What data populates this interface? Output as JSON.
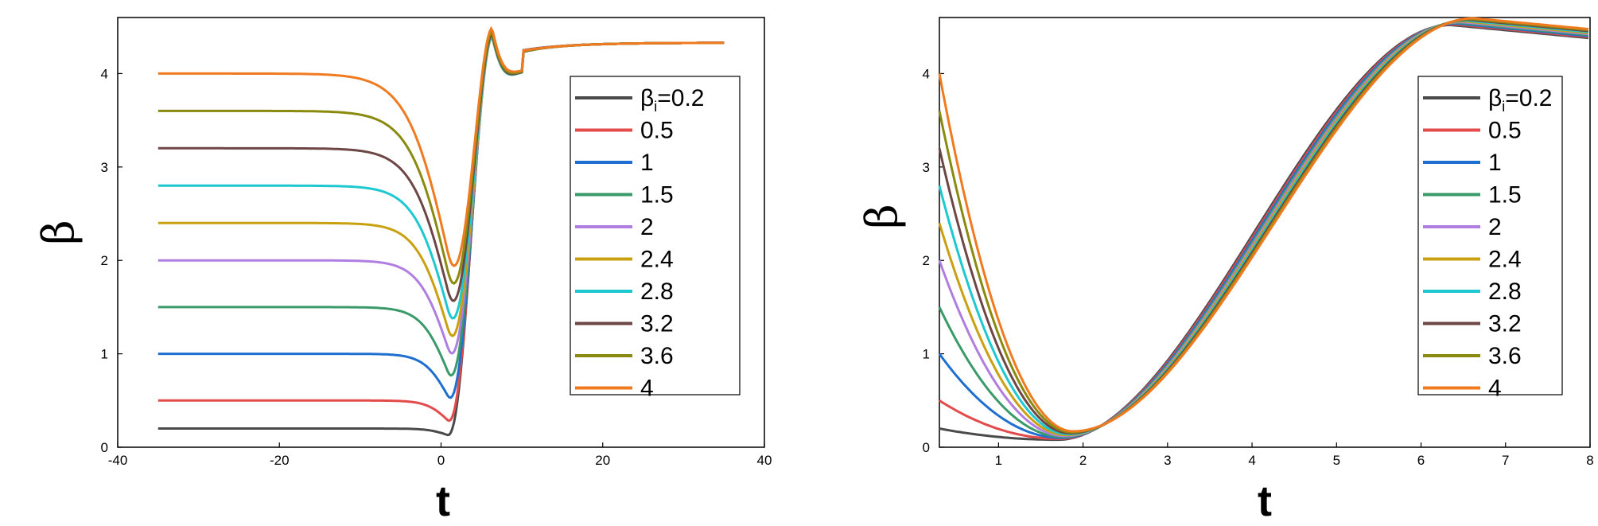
{
  "chart_data": [
    {
      "type": "line",
      "xlabel": "t",
      "ylabel": "β",
      "xlim": [
        -40,
        40
      ],
      "ylim": [
        0,
        4.6
      ],
      "xticks": [
        -40,
        -20,
        0,
        20,
        40
      ],
      "xtick_labels": [
        "-40",
        "-20",
        "0",
        "20",
        "40"
      ],
      "yticks": [
        0,
        1,
        2,
        3,
        4
      ],
      "ytick_labels": [
        "0",
        "1",
        "2",
        "3",
        "4"
      ],
      "legend_position": "right",
      "series": [
        {
          "name": "βi=0.2",
          "legend_label": "=0.2",
          "legend_symbol": "β",
          "legend_sub": "i",
          "init": 0.2,
          "color": "#4a4a4a"
        },
        {
          "name": "0.5",
          "legend_label": "0.5",
          "init": 0.5,
          "color": "#e34a4a"
        },
        {
          "name": "1",
          "legend_label": "1",
          "init": 1.0,
          "color": "#1f6fd0"
        },
        {
          "name": "1.5",
          "legend_label": "1.5",
          "init": 1.5,
          "color": "#3a9a6a"
        },
        {
          "name": "2",
          "legend_label": "2",
          "init": 2.0,
          "color": "#b07ee0"
        },
        {
          "name": "2.4",
          "legend_label": "2.4",
          "init": 2.4,
          "color": "#c9a010"
        },
        {
          "name": "2.8",
          "legend_label": "2.8",
          "init": 2.8,
          "color": "#1ec8d0"
        },
        {
          "name": "3.2",
          "legend_label": "3.2",
          "init": 3.2,
          "color": "#6e4646"
        },
        {
          "name": "3.6",
          "legend_label": "3.6",
          "init": 3.6,
          "color": "#8a8a10"
        },
        {
          "name": "4",
          "legend_label": "4",
          "init": 4.0,
          "color": "#f07a20"
        }
      ]
    },
    {
      "type": "line",
      "xlabel": "t",
      "ylabel": "β",
      "xlim": [
        0.3,
        8
      ],
      "ylim": [
        0,
        4.6
      ],
      "xticks": [
        1,
        2,
        3,
        4,
        5,
        6,
        7,
        8
      ],
      "xtick_labels": [
        "1",
        "2",
        "3",
        "4",
        "5",
        "6",
        "7",
        "8"
      ],
      "yticks": [
        0,
        1,
        2,
        3,
        4
      ],
      "ytick_labels": [
        "0",
        "1",
        "2",
        "3",
        "4"
      ],
      "legend_position": "right",
      "series": [
        {
          "name": "βi=0.2",
          "legend_label": "=0.2",
          "legend_symbol": "β",
          "legend_sub": "i",
          "init": 0.2,
          "color": "#4a4a4a"
        },
        {
          "name": "0.5",
          "legend_label": "0.5",
          "init": 0.5,
          "color": "#e34a4a"
        },
        {
          "name": "1",
          "legend_label": "1",
          "init": 1.0,
          "color": "#1f6fd0"
        },
        {
          "name": "1.5",
          "legend_label": "1.5",
          "init": 1.5,
          "color": "#3a9a6a"
        },
        {
          "name": "2",
          "legend_label": "2",
          "init": 2.0,
          "color": "#b07ee0"
        },
        {
          "name": "2.4",
          "legend_label": "2.4",
          "init": 2.4,
          "color": "#c9a010"
        },
        {
          "name": "2.8",
          "legend_label": "2.8",
          "init": 2.8,
          "color": "#1ec8d0"
        },
        {
          "name": "3.2",
          "legend_label": "3.2",
          "init": 3.2,
          "color": "#6e4646"
        },
        {
          "name": "3.6",
          "legend_label": "3.6",
          "init": 3.6,
          "color": "#8a8a10"
        },
        {
          "name": "4",
          "legend_label": "4",
          "init": 4.0,
          "color": "#f07a20"
        }
      ]
    }
  ]
}
